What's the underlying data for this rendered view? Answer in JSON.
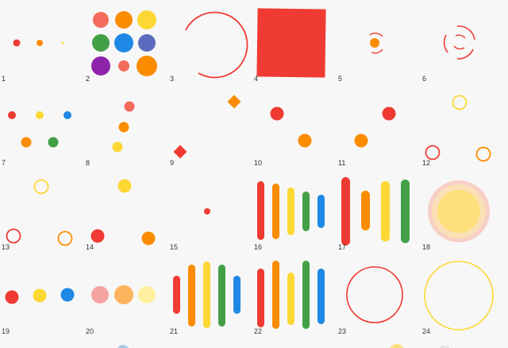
{
  "colors": {
    "red": "#ef3b33",
    "red_light": "#f26b5b",
    "orange": "#fb8c00",
    "yellow": "#fdd835",
    "green": "#43a047",
    "blue": "#1e88e5",
    "indigo": "#5c6bc0",
    "purple": "#8e24aa",
    "pink_light": "#f5a3a3",
    "orange_light": "#fbb45b",
    "yellow_light": "#fff0a0",
    "halo_outer": "#f8cfc6",
    "halo_mid": "#fbe0b6",
    "halo_inner": "#fde07b",
    "label": "#333333"
  },
  "cells": [
    {
      "label": "1"
    },
    {
      "label": "2"
    },
    {
      "label": "3"
    },
    {
      "label": "4"
    },
    {
      "label": "5"
    },
    {
      "label": "6"
    },
    {
      "label": "7"
    },
    {
      "label": "8"
    },
    {
      "label": "9"
    },
    {
      "label": "10"
    },
    {
      "label": "11"
    },
    {
      "label": "12"
    },
    {
      "label": "13"
    },
    {
      "label": "14"
    },
    {
      "label": "15"
    },
    {
      "label": "16"
    },
    {
      "label": "17"
    },
    {
      "label": "18"
    },
    {
      "label": "19"
    },
    {
      "label": "20"
    },
    {
      "label": "21"
    },
    {
      "label": "22"
    },
    {
      "label": "23"
    },
    {
      "label": "24"
    }
  ]
}
